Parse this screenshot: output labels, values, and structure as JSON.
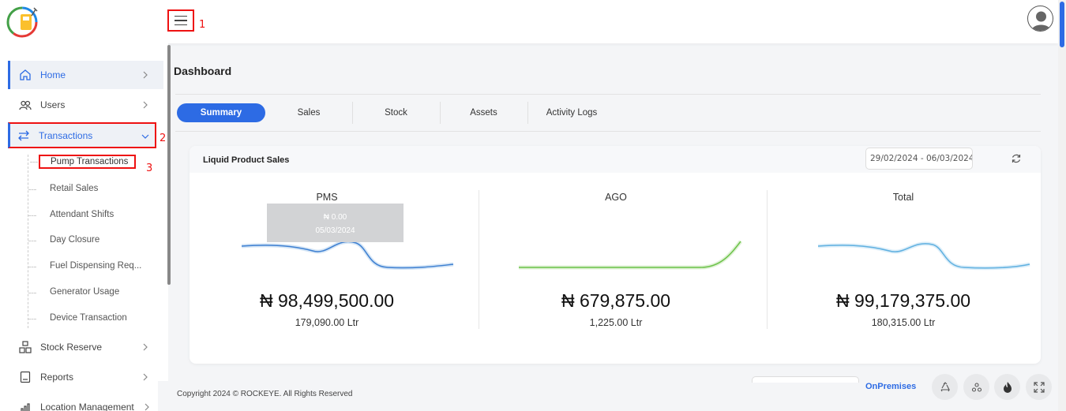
{
  "header": {
    "annotations": [
      "1",
      "2",
      "3"
    ],
    "logo_icon": "fuel-pump-logo",
    "menu_icon": "hamburger-icon",
    "avatar_icon": "user-avatar-icon"
  },
  "sidebar": {
    "items": [
      {
        "label": "Home",
        "icon": "home-icon"
      },
      {
        "label": "Users",
        "icon": "users-icon"
      },
      {
        "label": "Transactions",
        "icon": "transfer-icon"
      },
      {
        "label": "Stock Reserve",
        "icon": "boxes-icon"
      },
      {
        "label": "Reports",
        "icon": "report-icon"
      },
      {
        "label": "Location Management",
        "icon": "location-chart-icon"
      }
    ],
    "transactions_sub": [
      "Pump Transactions",
      "Retail Sales",
      "Attendant Shifts",
      "Day Closure",
      "Fuel Dispensing Req...",
      "Generator Usage",
      "Device Transaction"
    ]
  },
  "main": {
    "title": "Dashboard",
    "tabs": [
      "Summary",
      "Sales",
      "Stock",
      "Assets",
      "Activity Logs"
    ],
    "active_tab": "Summary",
    "card": {
      "title": "Liquid Product Sales",
      "date_range": "29/02/2024 - 06/03/2024",
      "metrics": [
        {
          "name": "PMS",
          "amount": "₦ 98,499,500.00",
          "litres": "179,090.00 Ltr",
          "color": "#3d7fd1"
        },
        {
          "name": "AGO",
          "amount": "₦ 679,875.00",
          "litres": "1,225.00 Ltr",
          "color": "#6cc24a"
        },
        {
          "name": "Total",
          "amount": "₦ 99,179,375.00",
          "litres": "180,315.00 Ltr",
          "color": "#5fb0e0"
        }
      ],
      "tooltip": {
        "value": "₦ 0.00",
        "date": "05/03/2024"
      }
    }
  },
  "footer": {
    "copyright": "Copyright 2024 © ROCKEYE. All Rights Reserved",
    "mode": "OnPremises",
    "buttons": [
      "recycle-icon",
      "cluster-icon",
      "fire-icon",
      "expand-icon"
    ]
  }
}
